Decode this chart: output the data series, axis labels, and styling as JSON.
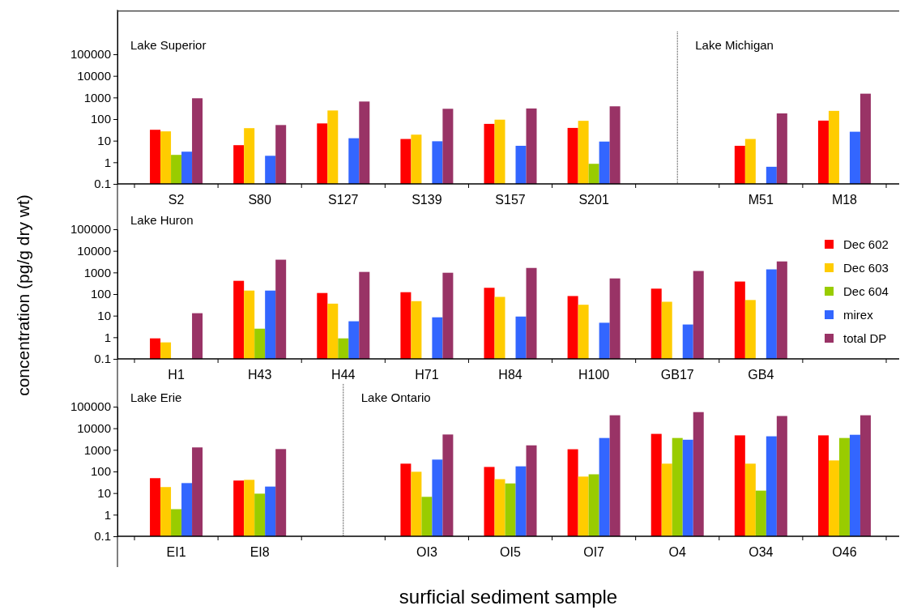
{
  "chart_data": [
    {
      "type": "bar",
      "categories": [
        "S2",
        "S80",
        "S127",
        "S139",
        "S157",
        "S201",
        null,
        "M51",
        "M18"
      ],
      "series": [
        {
          "color": "#ff0000",
          "values": [
            32,
            6.2,
            63,
            12,
            60,
            39,
            null,
            5.8,
            85
          ]
        },
        {
          "color": "#ffcc00",
          "values": [
            27,
            38,
            250,
            19,
            94,
            83,
            null,
            12,
            240
          ]
        },
        {
          "color": "#99cc00",
          "values": [
            2.2,
            null,
            null,
            null,
            null,
            0.85,
            null,
            null,
            null
          ]
        },
        {
          "color": "#3366ff",
          "values": [
            3.1,
            2.0,
            13,
            9.4,
            5.8,
            9.1,
            null,
            0.62,
            26
          ]
        },
        {
          "color": "#993366",
          "values": [
            920,
            53,
            650,
            300,
            310,
            390,
            null,
            183,
            1500
          ]
        }
      ],
      "ylim": [
        0.1,
        10000000
      ],
      "yticks": [
        0.1,
        1,
        10,
        100,
        1000,
        10000,
        100000
      ],
      "log": "y",
      "legend": false,
      "annotations": [
        "Lake Superior",
        "Lake Michigan"
      ]
    },
    {
      "type": "bar",
      "categories": [
        "H1",
        "H43",
        "H44",
        "H71",
        "H84",
        "H100",
        "GB17",
        "GB4",
        null
      ],
      "series": [
        {
          "name": "Dec 602",
          "color": "#ff0000",
          "values": [
            0.89,
            410,
            112,
            122,
            195,
            81,
            178,
            380,
            null
          ]
        },
        {
          "name": "Dec 603",
          "color": "#ffcc00",
          "values": [
            0.58,
            145,
            36,
            47,
            74,
            32,
            44,
            53,
            null
          ]
        },
        {
          "name": "Dec 604",
          "color": "#99cc00",
          "values": [
            null,
            2.5,
            0.89,
            null,
            null,
            null,
            null,
            null,
            null
          ]
        },
        {
          "name": "mirex",
          "color": "#3366ff",
          "values": [
            null,
            145,
            5.5,
            8.4,
            9.1,
            4.7,
            3.9,
            1390,
            null
          ]
        },
        {
          "name": "total DP",
          "color": "#993366",
          "values": [
            13,
            3900,
            1060,
            970,
            1620,
            530,
            1170,
            3240,
            null
          ]
        }
      ],
      "ylim": [
        0.1,
        100000
      ],
      "yticks": [
        0.1,
        1,
        10,
        100,
        1000,
        10000,
        100000
      ],
      "log": "y",
      "legend": "right",
      "ylabel": "concentration (pg/g dry wt)",
      "annotations": [
        "Lake Huron"
      ]
    },
    {
      "type": "bar",
      "categories": [
        "EI1",
        "EI8",
        null,
        "OI3",
        "OI5",
        "OI7",
        "O4",
        "O34",
        "O46"
      ],
      "series": [
        {
          "color": "#ff0000",
          "values": [
            49,
            38,
            null,
            230,
            162,
            1070,
            5500,
            4700,
            4700
          ]
        },
        {
          "color": "#ffcc00",
          "values": [
            19,
            41,
            null,
            97,
            44,
            58,
            230,
            230,
            325
          ]
        },
        {
          "color": "#99cc00",
          "values": [
            1.8,
            9.4,
            null,
            6.7,
            28,
            74,
            3550,
            13,
            3550
          ]
        },
        {
          "color": "#3366ff",
          "values": [
            29,
            20,
            null,
            355,
            173,
            3550,
            2950,
            4250,
            5000
          ]
        },
        {
          "color": "#993366",
          "values": [
            1300,
            1090,
            null,
            5150,
            1620,
            40000,
            56000,
            37000,
            40000
          ]
        }
      ],
      "ylim": [
        0.1,
        100000
      ],
      "yticks": [
        0.1,
        1,
        10,
        100,
        1000,
        10000,
        100000
      ],
      "log": "y",
      "legend": false,
      "xlabel": "surficial sediment sample",
      "annotations": [
        "Lake Erie",
        "Lake Ontario"
      ]
    }
  ]
}
